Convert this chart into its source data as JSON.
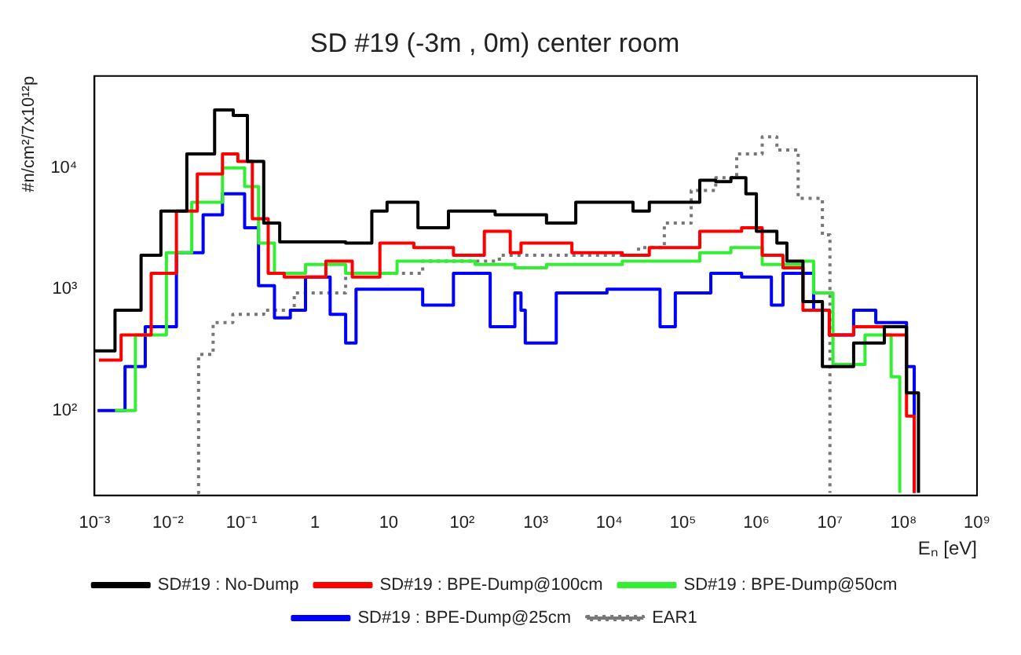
{
  "chart_data": {
    "type": "step",
    "title": "SD #19 (-3m , 0m) center room",
    "xlabel": "Eₙ [eV]",
    "ylabel": "#n/cm²/7x10¹²p",
    "log": "xy",
    "grid": false,
    "legend": "bottom",
    "marker": "none",
    "xlim": [
      0.001,
      1000000000
    ],
    "xticks": [
      {
        "value": 0.001,
        "label": "10⁻³"
      },
      {
        "value": 0.01,
        "label": "10⁻²"
      },
      {
        "value": 0.1,
        "label": "10⁻¹"
      },
      1,
      10,
      {
        "value": 100,
        "label": "10²"
      },
      {
        "value": 1000,
        "label": "10³"
      },
      {
        "value": 10000,
        "label": "10⁴"
      },
      {
        "value": 100000,
        "label": "10⁵"
      },
      {
        "value": 1000000,
        "label": "10⁶"
      },
      {
        "value": 10000000,
        "label": "10⁷"
      },
      {
        "value": 100000000,
        "label": "10⁸"
      },
      {
        "value": 1000000000,
        "label": "10⁹"
      }
    ],
    "ylim": [
      20,
      57000
    ],
    "yticks": [
      {
        "value": 100,
        "label": "10²"
      },
      {
        "value": 1000,
        "label": "10³"
      },
      {
        "value": 10000,
        "label": "10⁴"
      }
    ],
    "series": [
      {
        "name": "SD#19 : No-Dump",
        "color": "#000000",
        "line_style": "solid",
        "x": [
          0.001,
          0.0019,
          0.0043,
          0.008,
          0.018,
          0.043,
          0.077,
          0.12,
          0.2,
          0.33,
          2.6,
          5.9,
          9.5,
          25,
          65,
          280,
          1400,
          3500,
          21000,
          35000,
          170000,
          280000,
          450000,
          720000,
          1000000,
          1900000,
          2600000,
          4300000,
          7900000,
          21000000,
          55000000,
          110000000,
          160000000
        ],
        "values": [
          310,
          670,
          1900,
          4400,
          13000,
          30000,
          27000,
          11300,
          3500,
          2450,
          2400,
          4400,
          5200,
          3200,
          4400,
          4100,
          3500,
          5200,
          4400,
          5200,
          7900,
          7700,
          8300,
          6100,
          3000,
          2400,
          1700,
          790,
          230,
          360,
          490,
          140,
          21
        ]
      },
      {
        "name": "SD#19 : BPE-Dump@100cm",
        "color": "#ff0000",
        "line_style": "solid",
        "x": [
          0.00115,
          0.0023,
          0.0059,
          0.013,
          0.025,
          0.055,
          0.089,
          0.14,
          0.23,
          0.38,
          1.4,
          3.2,
          7.6,
          22,
          76,
          200,
          450,
          630,
          3100,
          15000,
          35000,
          170000,
          630000,
          1200000,
          2300000,
          4300000,
          9800000,
          21000000,
          55000000,
          110000000,
          140000000
        ],
        "values": [
          260,
          420,
          1350,
          4400,
          8900,
          13000,
          11300,
          3800,
          1350,
          1260,
          1700,
          1260,
          2400,
          2200,
          1900,
          3000,
          2000,
          2400,
          2000,
          1900,
          2200,
          3000,
          3200,
          1900,
          1500,
          670,
          420,
          490,
          420,
          90,
          21
        ]
      },
      {
        "name": "SD#19 : BPE-Dump@50cm",
        "color": "#33ee33",
        "line_style": "solid",
        "x": [
          0.0019,
          0.0036,
          0.0095,
          0.021,
          0.055,
          0.11,
          0.17,
          0.28,
          0.74,
          2.6,
          13,
          150,
          520,
          1400,
          15000,
          170000,
          450000,
          1200000,
          4300000,
          6000000,
          11000000,
          30000000,
          68000000,
          89000000
        ],
        "values": [
          100,
          420,
          2000,
          5200,
          10000,
          7000,
          2400,
          1350,
          1600,
          1350,
          1700,
          1600,
          1500,
          1600,
          1700,
          2000,
          2200,
          1600,
          1700,
          930,
          240,
          420,
          190,
          21
        ]
      },
      {
        "name": "SD#19 : BPE-Dump@25cm",
        "color": "#0000ff",
        "line_style": "solid",
        "x": [
          0.0011,
          0.0026,
          0.0049,
          0.013,
          0.03,
          0.055,
          0.11,
          0.17,
          0.28,
          0.46,
          0.74,
          1.6,
          2.6,
          3.6,
          13,
          29,
          76,
          240,
          520,
          630,
          720,
          1900,
          9300,
          49000,
          79000,
          240000,
          630000,
          1600000,
          2300000,
          6000000,
          9800000,
          21000000,
          42000000,
          110000000,
          140000000
        ],
        "values": [
          100,
          230,
          490,
          2000,
          4100,
          6100,
          3200,
          1070,
          580,
          670,
          1260,
          620,
          360,
          1000,
          1000,
          740,
          1350,
          490,
          930,
          670,
          360,
          930,
          1000,
          490,
          930,
          1350,
          1260,
          740,
          1350,
          670,
          420,
          670,
          530,
          230,
          21
        ]
      },
      {
        "name": "EAR1",
        "color": "#777777",
        "line_style": "dotted",
        "x": [
          0.025,
          0.026,
          0.041,
          0.076,
          0.2,
          0.52,
          2.6,
          29,
          320,
          6900,
          25000,
          56000,
          130000,
          280000,
          540000,
          1200000,
          1900000,
          3700000,
          7900000,
          10000000,
          10000000
        ],
        "values": [
          21,
          290,
          530,
          620,
          670,
          930,
          1350,
          1700,
          1900,
          1900,
          2200,
          3500,
          6500,
          8300,
          13000,
          18000,
          14000,
          5600,
          2800,
          2800,
          21
        ]
      }
    ]
  }
}
